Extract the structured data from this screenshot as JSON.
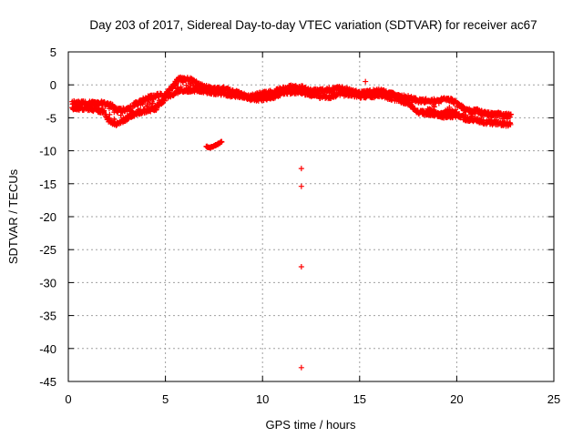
{
  "chart_data": {
    "type": "scatter",
    "title": "Day 203 of 2017, Sidereal Day-to-day VTEC variation (SDTVAR) for receiver ac67",
    "xlabel": "GPS time / hours",
    "ylabel": "SDTVAR / TECUs",
    "xlim": [
      0,
      25
    ],
    "ylim": [
      -45,
      5
    ],
    "xticks": [
      0,
      5,
      10,
      15,
      20,
      25
    ],
    "yticks": [
      5,
      0,
      -5,
      -10,
      -15,
      -20,
      -25,
      -30,
      -35,
      -40,
      -45
    ],
    "grid": true,
    "marker": "+",
    "color": "#ff0000",
    "series": [
      {
        "name": "SDTVAR",
        "band_upper": {
          "x": [
            0.2,
            1.0,
            1.8,
            2.1,
            2.5,
            3.0,
            3.5,
            4.0,
            4.5,
            5.0,
            5.3,
            5.7,
            6.2,
            6.8,
            7.5,
            8.0,
            8.5,
            9.0,
            9.5,
            10.0,
            10.5,
            11.0,
            11.5,
            12.0,
            12.5,
            13.0,
            13.5,
            14.0,
            14.5,
            15.0,
            15.5,
            16.0,
            16.5,
            17.0,
            17.5,
            18.0,
            18.5,
            19.0,
            19.5,
            20.0,
            20.5,
            21.0,
            21.5,
            22.0,
            22.5,
            22.8
          ],
          "y": [
            -2.4,
            -2.5,
            -2.5,
            -2.6,
            -3.5,
            -3.5,
            -2.5,
            -1.8,
            -1.3,
            -1.2,
            -0.2,
            1.2,
            1.2,
            0.2,
            -0.4,
            -0.3,
            -0.7,
            -1.3,
            -1.4,
            -1.0,
            -0.8,
            -0.4,
            0.0,
            -0.1,
            -0.6,
            -0.6,
            -0.4,
            -0.2,
            -0.6,
            -1.0,
            -0.8,
            -0.6,
            -1.0,
            -1.4,
            -1.6,
            -2.1,
            -2.1,
            -2.1,
            -1.7,
            -2.5,
            -3.6,
            -3.6,
            -4.1,
            -4.1,
            -4.2,
            -4.3
          ]
        },
        "band_lower": {
          "x": [
            0.2,
            1.0,
            1.8,
            2.1,
            2.5,
            3.0,
            3.5,
            4.0,
            4.5,
            5.0,
            5.3,
            5.7,
            6.2,
            6.8,
            7.5,
            8.0,
            8.5,
            9.0,
            9.5,
            10.0,
            10.5,
            11.0,
            11.5,
            12.0,
            12.5,
            13.0,
            13.5,
            14.0,
            14.5,
            15.0,
            15.5,
            16.0,
            16.5,
            17.0,
            17.5,
            18.0,
            18.5,
            19.0,
            19.5,
            20.0,
            20.5,
            21.0,
            21.5,
            22.0,
            22.5,
            22.8
          ],
          "y": [
            -3.8,
            -3.9,
            -4.3,
            -5.8,
            -6.2,
            -5.4,
            -4.6,
            -4.2,
            -3.9,
            -2.3,
            -1.8,
            -1.2,
            -1.1,
            -1.1,
            -1.5,
            -1.6,
            -1.9,
            -2.0,
            -2.5,
            -2.4,
            -2.2,
            -1.6,
            -1.4,
            -1.4,
            -1.8,
            -2.1,
            -2.1,
            -1.7,
            -1.7,
            -2.0,
            -2.0,
            -1.9,
            -2.2,
            -2.6,
            -3.1,
            -4.5,
            -4.6,
            -4.8,
            -5.2,
            -4.9,
            -5.5,
            -5.6,
            -6.0,
            -6.1,
            -6.3,
            -6.2
          ]
        },
        "lower_branch": {
          "x": [
            18.5,
            18.8,
            19.1,
            19.4,
            19.7,
            20.0
          ],
          "y": [
            -3.6,
            -4.1,
            -4.4,
            -4.2,
            -4.0,
            -4.3
          ]
        },
        "segment": {
          "x": [
            7.1,
            7.3,
            7.5,
            7.7,
            7.9
          ],
          "y": [
            -9.4,
            -9.5,
            -9.3,
            -9.0,
            -8.6
          ]
        },
        "outliers": {
          "x": [
            12.0,
            12.0,
            12.0,
            12.0,
            15.3
          ],
          "y": [
            -12.7,
            -15.4,
            -27.6,
            -42.9,
            0.5
          ]
        }
      }
    ]
  }
}
